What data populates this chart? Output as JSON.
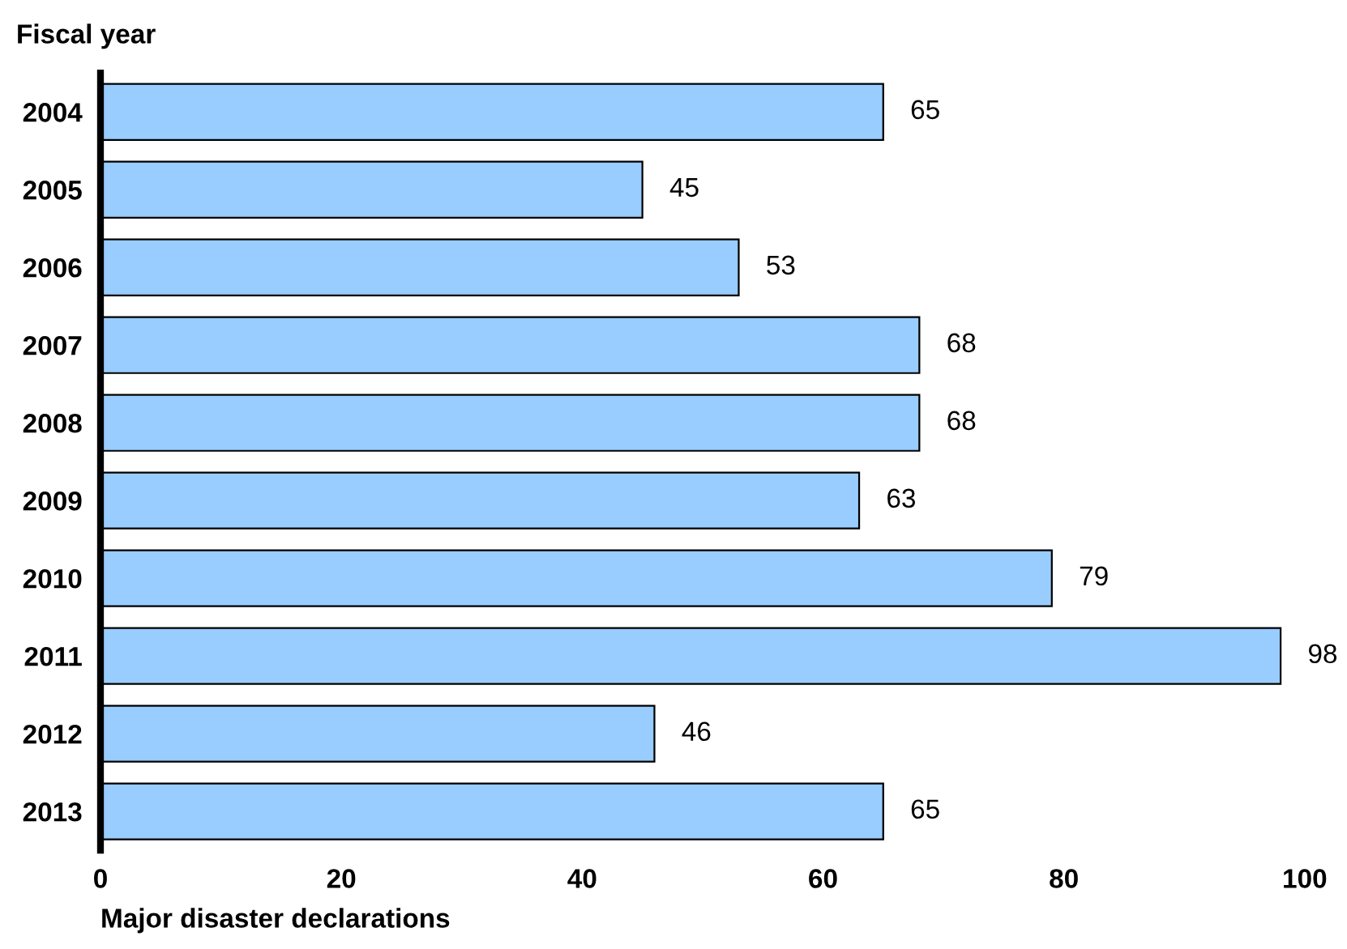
{
  "chart_data": {
    "type": "bar",
    "orientation": "horizontal",
    "ylabel": "Fiscal year",
    "xlabel": "Major disaster declarations",
    "categories": [
      "2004",
      "2005",
      "2006",
      "2007",
      "2008",
      "2009",
      "2010",
      "2011",
      "2012",
      "2013"
    ],
    "values": [
      65,
      45,
      53,
      68,
      68,
      63,
      79,
      98,
      46,
      65
    ],
    "color": "#99ccff",
    "xlim": [
      0,
      100
    ],
    "xticks": [
      0,
      20,
      40,
      60,
      80,
      100
    ],
    "data_labels": true,
    "grid": false,
    "legend": false
  }
}
